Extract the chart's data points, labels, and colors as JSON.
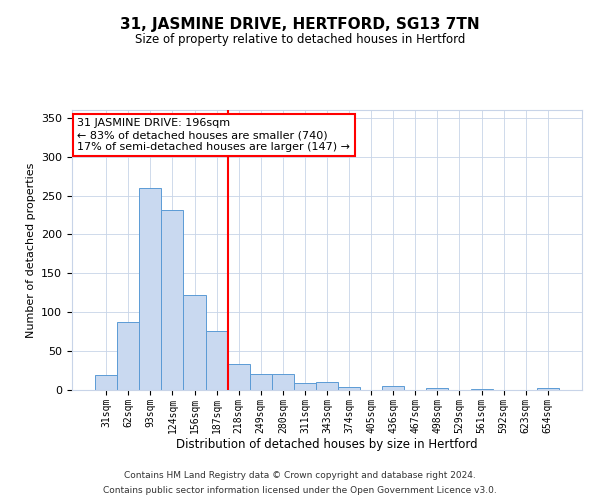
{
  "title": "31, JASMINE DRIVE, HERTFORD, SG13 7TN",
  "subtitle": "Size of property relative to detached houses in Hertford",
  "xlabel": "Distribution of detached houses by size in Hertford",
  "ylabel": "Number of detached properties",
  "bar_labels": [
    "31sqm",
    "62sqm",
    "93sqm",
    "124sqm",
    "156sqm",
    "187sqm",
    "218sqm",
    "249sqm",
    "280sqm",
    "311sqm",
    "343sqm",
    "374sqm",
    "405sqm",
    "436sqm",
    "467sqm",
    "498sqm",
    "529sqm",
    "561sqm",
    "592sqm",
    "623sqm",
    "654sqm"
  ],
  "bar_values": [
    19,
    87,
    260,
    231,
    122,
    76,
    33,
    20,
    20,
    9,
    10,
    4,
    0,
    5,
    0,
    2,
    0,
    1,
    0,
    0,
    2
  ],
  "bar_color": "#c9d9f0",
  "bar_edge_color": "#5b9bd5",
  "vline_x_index": 5.5,
  "vline_color": "red",
  "annotation_title": "31 JASMINE DRIVE: 196sqm",
  "annotation_line2": "← 83% of detached houses are smaller (740)",
  "annotation_line3": "17% of semi-detached houses are larger (147) →",
  "ylim": [
    0,
    360
  ],
  "yticks": [
    0,
    50,
    100,
    150,
    200,
    250,
    300,
    350
  ],
  "footer1": "Contains HM Land Registry data © Crown copyright and database right 2024.",
  "footer2": "Contains public sector information licensed under the Open Government Licence v3.0."
}
